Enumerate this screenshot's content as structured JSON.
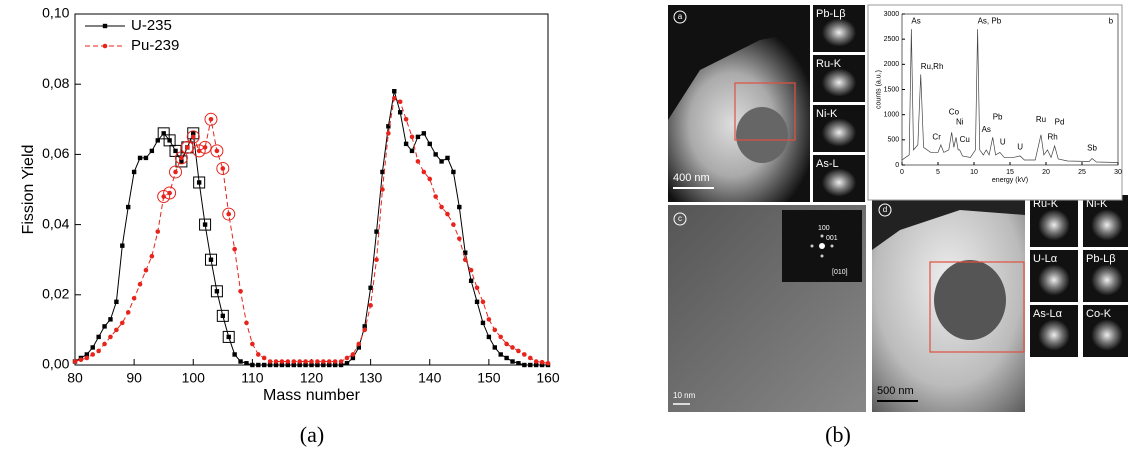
{
  "chart_data": [
    {
      "type": "line",
      "xlabel": "Mass number",
      "ylabel": "Fission Yield",
      "xlim": [
        80,
        160
      ],
      "xticks": [
        80,
        90,
        100,
        110,
        120,
        130,
        140,
        150,
        160
      ],
      "ylim": [
        0,
        0.1
      ],
      "yticks": [
        {
          "value": 0,
          "label": "0,00"
        },
        {
          "value": 0.02,
          "label": "0,02"
        },
        {
          "value": 0.04,
          "label": "0,04"
        },
        {
          "value": 0.06,
          "label": "0,06"
        },
        {
          "value": 0.08,
          "label": "0,08"
        },
        {
          "value": 0.1,
          "label": "0,10"
        }
      ],
      "legend": "upper left",
      "x": [
        80,
        81,
        82,
        83,
        84,
        85,
        86,
        87,
        88,
        89,
        90,
        91,
        92,
        93,
        94,
        95,
        96,
        97,
        98,
        99,
        100,
        101,
        102,
        103,
        104,
        105,
        106,
        107,
        108,
        109,
        110,
        111,
        112,
        113,
        114,
        115,
        116,
        117,
        118,
        119,
        120,
        121,
        122,
        123,
        124,
        125,
        126,
        127,
        128,
        129,
        130,
        131,
        132,
        133,
        134,
        135,
        136,
        137,
        138,
        139,
        140,
        141,
        142,
        143,
        144,
        145,
        146,
        147,
        148,
        149,
        150,
        151,
        152,
        153,
        154,
        155,
        156,
        157,
        158,
        159,
        160
      ],
      "series": [
        {
          "name": "U-235",
          "color": "#000000",
          "marker": "square",
          "line_style": "solid",
          "values": [
            0.001,
            0.002,
            0.003,
            0.005,
            0.008,
            0.011,
            0.013,
            0.018,
            0.034,
            0.045,
            0.055,
            0.059,
            0.059,
            0.061,
            0.064,
            0.066,
            0.064,
            0.061,
            0.058,
            0.062,
            0.066,
            0.052,
            0.04,
            0.03,
            0.021,
            0.014,
            0.008,
            0.003,
            0.001,
            0.0005,
            0,
            0,
            0,
            0,
            0,
            0,
            0,
            0,
            0,
            0,
            0,
            0,
            0,
            0,
            0,
            0,
            0.0005,
            0.002,
            0.005,
            0.011,
            0.022,
            0.038,
            0.055,
            0.068,
            0.078,
            0.072,
            0.063,
            0.061,
            0.065,
            0.066,
            0.063,
            0.06,
            0.058,
            0.059,
            0.055,
            0.045,
            0.032,
            0.024,
            0.018,
            0.012,
            0.008,
            0.005,
            0.003,
            0.002,
            0.001,
            0.0005,
            0,
            0,
            0,
            0,
            0
          ]
        },
        {
          "name": "Pu-239",
          "color": "#e8231c",
          "marker": "circle",
          "line_style": "dashed",
          "values": [
            0.001,
            0.0015,
            0.002,
            0.003,
            0.004,
            0.006,
            0.008,
            0.01,
            0.012,
            0.015,
            0.019,
            0.023,
            0.027,
            0.031,
            0.038,
            0.048,
            0.049,
            0.055,
            0.059,
            0.062,
            0.065,
            0.061,
            0.062,
            0.07,
            0.061,
            0.056,
            0.043,
            0.033,
            0.021,
            0.012,
            0.006,
            0.003,
            0.002,
            0.001,
            0.001,
            0.001,
            0.001,
            0.001,
            0.001,
            0.001,
            0.001,
            0.001,
            0.001,
            0.001,
            0.001,
            0.001,
            0.002,
            0.003,
            0.006,
            0.01,
            0.017,
            0.03,
            0.05,
            0.066,
            0.076,
            0.075,
            0.07,
            0.065,
            0.058,
            0.055,
            0.053,
            0.048,
            0.045,
            0.043,
            0.04,
            0.036,
            0.03,
            0.027,
            0.022,
            0.018,
            0.013,
            0.01,
            0.008,
            0.006,
            0.005,
            0.004,
            0.003,
            0.002,
            0.001,
            0.0008,
            0.0005
          ]
        }
      ]
    },
    {
      "type": "line",
      "xlabel": "energy (kV)",
      "ylabel": "counts (a.u.)",
      "xlim": [
        0,
        30
      ],
      "xticks": [
        0,
        5,
        10,
        15,
        20,
        25,
        30
      ],
      "ylim": [
        0,
        3000
      ],
      "yticks": [
        0,
        500,
        1000,
        1500,
        2000,
        2500,
        3000
      ],
      "x": [
        0,
        0.5,
        1.0,
        1.3,
        1.6,
        2.2,
        2.6,
        3.0,
        4,
        5,
        5.4,
        5.8,
        6.5,
        6.9,
        7.2,
        7.5,
        7.8,
        8.0,
        8.4,
        9.5,
        10.2,
        10.5,
        10.8,
        11.3,
        11.7,
        12.1,
        12.6,
        13.0,
        13.6,
        14.2,
        15.5,
        16.4,
        17,
        18.5,
        19.3,
        19.7,
        20.2,
        20.7,
        21.2,
        21.7,
        23,
        26,
        26.4,
        27,
        30
      ],
      "series": [
        {
          "color": "#444444",
          "marker": "none",
          "line_style": "solid",
          "values": [
            100,
            150,
            200,
            2700,
            300,
            400,
            1800,
            350,
            250,
            250,
            400,
            250,
            300,
            650,
            350,
            550,
            300,
            300,
            180,
            150,
            300,
            2700,
            300,
            200,
            300,
            200,
            550,
            200,
            250,
            150,
            150,
            180,
            100,
            100,
            600,
            200,
            300,
            150,
            380,
            120,
            80,
            70,
            130,
            60,
            50
          ]
        }
      ],
      "annotations": [
        "As",
        "Ru,Rh",
        "Cr",
        "Co",
        "Ni",
        "Cu",
        "As, Pb",
        "As",
        "Pb",
        "U",
        "U",
        "Ru",
        "Rh",
        "Pd",
        "Sb",
        "b"
      ]
    }
  ],
  "panel_b": {
    "image_a": {
      "tag": "a",
      "scale": "400 nm",
      "maps": [
        "Pb-Lβ",
        "Ru-K",
        "Ni-K",
        "As-L"
      ]
    },
    "image_c": {
      "tag": "c",
      "scale": "10 nm",
      "diffraction": [
        "100",
        "001",
        "[010]"
      ]
    },
    "image_d": {
      "tag": "d",
      "scale": "500 nm",
      "maps": [
        "Ru-K",
        "Ni-K",
        "U-Lα",
        "Pb-Lβ",
        "As-Lα",
        "Co-K"
      ]
    }
  },
  "captions": [
    "(a)",
    "(b)"
  ]
}
